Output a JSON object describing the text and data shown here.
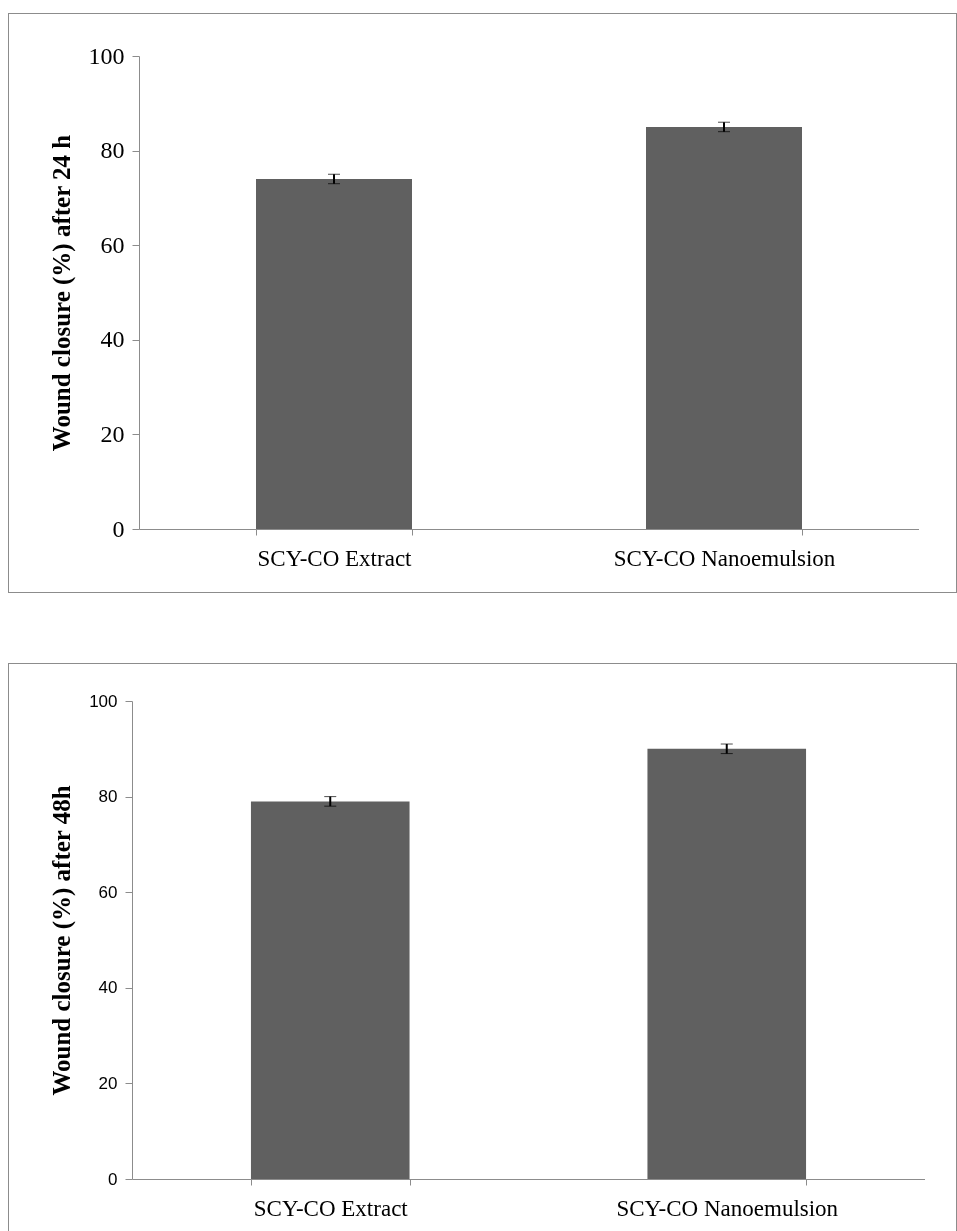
{
  "chart_data": [
    {
      "type": "bar",
      "ylabel": "Wound closure (%) after 24 h",
      "categories": [
        "SCY-CO Extract",
        "SCY-CO Nanoemulsion"
      ],
      "values": [
        74,
        85
      ],
      "errors": [
        1,
        1
      ],
      "color": "#606060",
      "ylim": [
        0,
        100
      ],
      "yticks": [
        0,
        20,
        40,
        60,
        80,
        100
      ],
      "grid": false
    },
    {
      "type": "bar",
      "ylabel": "Wound closure (%) after 48h",
      "categories": [
        "SCY-CO Extract",
        "SCY-CO Nanoemulsion"
      ],
      "values": [
        79,
        90
      ],
      "errors": [
        1,
        1
      ],
      "color": "#606060",
      "ylim": [
        0,
        100
      ],
      "yticks": [
        0,
        20,
        40,
        60,
        80,
        100
      ],
      "grid": false
    }
  ]
}
